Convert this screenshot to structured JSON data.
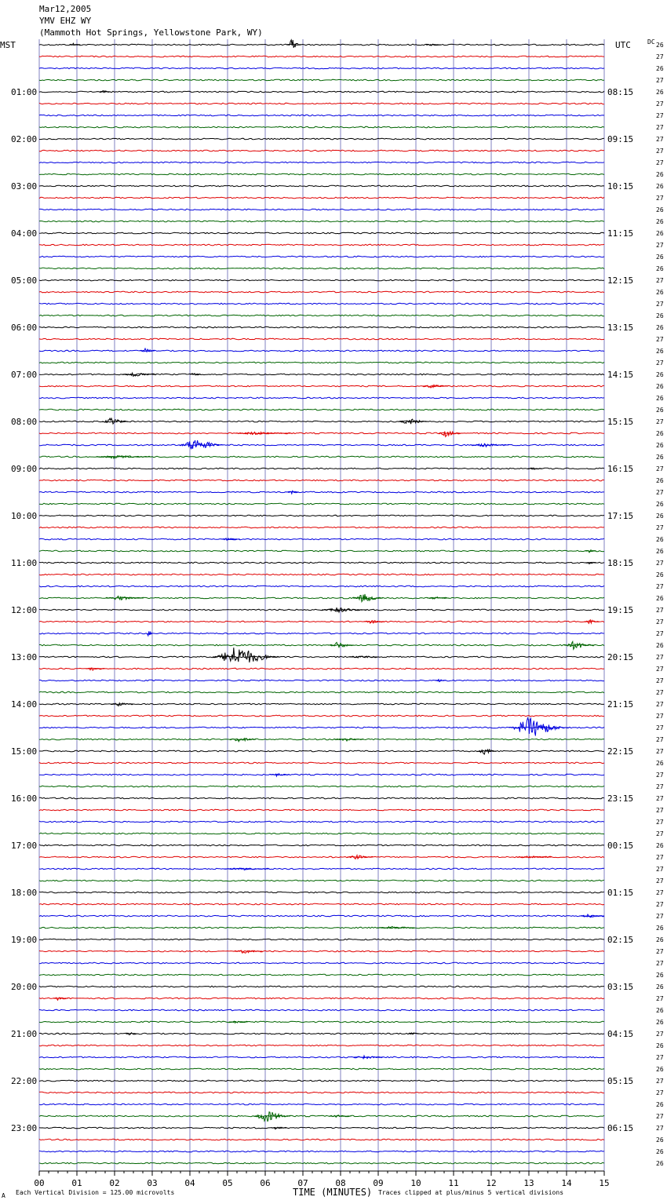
{
  "header": {
    "date": "Mar12,2005",
    "station": "YMV EHZ WY",
    "location": "(Mammoth Hot Springs, Yellowstone Park, WY)"
  },
  "left_axis_label": "MST",
  "right_axis_label": "UTC",
  "dc_label": "DC",
  "footer": {
    "scale_note": "Each Vertical Division =  125.00 microvolts",
    "xlabel": "TIME (MINUTES)",
    "clip_note": "Traces clipped at plus/minus 5 vertical divisions",
    "corner_mark": "A"
  },
  "colors": {
    "trace_cycle": [
      "#000000",
      "#e00000",
      "#0000e0",
      "#006400"
    ],
    "gridline": "#8080c0"
  },
  "chart_data": {
    "type": "line",
    "title": "YMV EHZ WY",
    "xlabel": "TIME (MINUTES)",
    "xlim": [
      0,
      15
    ],
    "x_ticks": [
      "00",
      "01",
      "02",
      "03",
      "04",
      "05",
      "06",
      "07",
      "08",
      "09",
      "10",
      "11",
      "12",
      "13",
      "14",
      "15"
    ],
    "rows_per_hour": 4,
    "left_time_labels": [
      "",
      "01:00",
      "02:00",
      "03:00",
      "04:00",
      "05:00",
      "06:00",
      "07:00",
      "08:00",
      "09:00",
      "10:00",
      "11:00",
      "12:00",
      "13:00",
      "14:00",
      "15:00",
      "16:00",
      "17:00",
      "18:00",
      "19:00",
      "20:00",
      "21:00",
      "22:00",
      "23:00"
    ],
    "right_time_labels": [
      "",
      "08:15",
      "09:15",
      "10:15",
      "11:15",
      "12:15",
      "13:15",
      "14:15",
      "15:15",
      "16:15",
      "17:15",
      "18:15",
      "19:15",
      "20:15",
      "21:15",
      "22:15",
      "23:15",
      "00:15",
      "01:15",
      "02:15",
      "03:15",
      "04:15",
      "05:15",
      "06:15"
    ],
    "dc_offsets": [
      26,
      27,
      26,
      27,
      26,
      27,
      27,
      27,
      27,
      27,
      27,
      26,
      26,
      27,
      26,
      26,
      26,
      27,
      26,
      26,
      27,
      26,
      27,
      26,
      26,
      27,
      26,
      27,
      26,
      26,
      26,
      26,
      27,
      26,
      26,
      26,
      27,
      26,
      27,
      26,
      26,
      27,
      26,
      26,
      27,
      26,
      27,
      26,
      27,
      27,
      27,
      26,
      27,
      27,
      27,
      27,
      27,
      27,
      27,
      27,
      27,
      26,
      27,
      27,
      27,
      27,
      27,
      27,
      26,
      27,
      27,
      27,
      27,
      27,
      27,
      26,
      26,
      27,
      27,
      26,
      26,
      27,
      26,
      26,
      27,
      26,
      27,
      26,
      27,
      27,
      26,
      27,
      27,
      26,
      26,
      26
    ],
    "events": [
      {
        "row": 0,
        "minute": 0.9,
        "amp": 2.0,
        "dur": 0.3
      },
      {
        "row": 0,
        "minute": 6.7,
        "amp": 8.0,
        "dur": 0.4
      },
      {
        "row": 0,
        "minute": 10.4,
        "amp": 1.5,
        "dur": 0.4
      },
      {
        "row": 4,
        "minute": 1.7,
        "amp": 2.0,
        "dur": 0.3
      },
      {
        "row": 26,
        "minute": 2.8,
        "amp": 4.0,
        "dur": 0.4
      },
      {
        "row": 28,
        "minute": 2.5,
        "amp": 3.5,
        "dur": 0.9
      },
      {
        "row": 28,
        "minute": 4.1,
        "amp": 3.0,
        "dur": 0.3
      },
      {
        "row": 29,
        "minute": 10.4,
        "amp": 2.5,
        "dur": 0.7
      },
      {
        "row": 32,
        "minute": 1.9,
        "amp": 5.0,
        "dur": 0.7
      },
      {
        "row": 32,
        "minute": 9.8,
        "amp": 4.5,
        "dur": 0.8
      },
      {
        "row": 33,
        "minute": 10.8,
        "amp": 5.0,
        "dur": 0.6
      },
      {
        "row": 33,
        "minute": 5.7,
        "amp": 2.0,
        "dur": 1.5
      },
      {
        "row": 34,
        "minute": 4.1,
        "amp": 9.0,
        "dur": 1.2
      },
      {
        "row": 34,
        "minute": 11.8,
        "amp": 2.5,
        "dur": 1.0
      },
      {
        "row": 35,
        "minute": 2.0,
        "amp": 2.5,
        "dur": 1.5
      },
      {
        "row": 36,
        "minute": 13.1,
        "amp": 1.5,
        "dur": 0.4
      },
      {
        "row": 38,
        "minute": 6.7,
        "amp": 2.5,
        "dur": 0.3
      },
      {
        "row": 42,
        "minute": 5.0,
        "amp": 2.0,
        "dur": 0.5
      },
      {
        "row": 43,
        "minute": 14.6,
        "amp": 2.0,
        "dur": 0.3
      },
      {
        "row": 44,
        "minute": 14.6,
        "amp": 2.0,
        "dur": 0.3
      },
      {
        "row": 47,
        "minute": 8.6,
        "amp": 6.0,
        "dur": 0.8
      },
      {
        "row": 47,
        "minute": 2.1,
        "amp": 3.0,
        "dur": 1.0
      },
      {
        "row": 47,
        "minute": 10.5,
        "amp": 2.0,
        "dur": 0.6
      },
      {
        "row": 48,
        "minute": 7.9,
        "amp": 3.5,
        "dur": 1.2
      },
      {
        "row": 49,
        "minute": 8.8,
        "amp": 2.5,
        "dur": 0.6
      },
      {
        "row": 49,
        "minute": 14.6,
        "amp": 4.0,
        "dur": 0.4
      },
      {
        "row": 50,
        "minute": 2.9,
        "amp": 6.0,
        "dur": 0.15
      },
      {
        "row": 51,
        "minute": 7.9,
        "amp": 4.5,
        "dur": 0.7
      },
      {
        "row": 51,
        "minute": 14.2,
        "amp": 6.0,
        "dur": 0.8
      },
      {
        "row": 52,
        "minute": 5.2,
        "amp": 14.0,
        "dur": 1.8
      },
      {
        "row": 52,
        "minute": 8.5,
        "amp": 2.0,
        "dur": 0.8
      },
      {
        "row": 53,
        "minute": 1.4,
        "amp": 2.5,
        "dur": 0.5
      },
      {
        "row": 54,
        "minute": 10.6,
        "amp": 2.0,
        "dur": 0.3
      },
      {
        "row": 56,
        "minute": 2.1,
        "amp": 2.5,
        "dur": 0.6
      },
      {
        "row": 58,
        "minute": 13.0,
        "amp": 14.0,
        "dur": 1.6
      },
      {
        "row": 59,
        "minute": 5.3,
        "amp": 3.5,
        "dur": 0.7
      },
      {
        "row": 59,
        "minute": 8.1,
        "amp": 2.5,
        "dur": 0.8
      },
      {
        "row": 60,
        "minute": 11.8,
        "amp": 5.0,
        "dur": 0.5
      },
      {
        "row": 62,
        "minute": 6.3,
        "amp": 2.0,
        "dur": 0.5
      },
      {
        "row": 69,
        "minute": 8.4,
        "amp": 3.0,
        "dur": 0.7
      },
      {
        "row": 69,
        "minute": 13.0,
        "amp": 2.0,
        "dur": 0.9
      },
      {
        "row": 70,
        "minute": 5.3,
        "amp": 2.0,
        "dur": 1.2
      },
      {
        "row": 74,
        "minute": 14.6,
        "amp": 3.0,
        "dur": 0.8
      },
      {
        "row": 75,
        "minute": 9.3,
        "amp": 2.0,
        "dur": 1.0
      },
      {
        "row": 77,
        "minute": 5.4,
        "amp": 3.0,
        "dur": 0.8
      },
      {
        "row": 81,
        "minute": 0.5,
        "amp": 2.5,
        "dur": 0.4
      },
      {
        "row": 83,
        "minute": 5.2,
        "amp": 1.5,
        "dur": 0.5
      },
      {
        "row": 84,
        "minute": 2.4,
        "amp": 2.0,
        "dur": 0.3
      },
      {
        "row": 84,
        "minute": 9.9,
        "amp": 1.8,
        "dur": 0.3
      },
      {
        "row": 86,
        "minute": 8.6,
        "amp": 2.5,
        "dur": 0.8
      },
      {
        "row": 91,
        "minute": 6.0,
        "amp": 9.0,
        "dur": 1.0
      },
      {
        "row": 91,
        "minute": 7.9,
        "amp": 1.5,
        "dur": 0.6
      },
      {
        "row": 92,
        "minute": 6.3,
        "amp": 2.5,
        "dur": 0.4
      }
    ]
  }
}
